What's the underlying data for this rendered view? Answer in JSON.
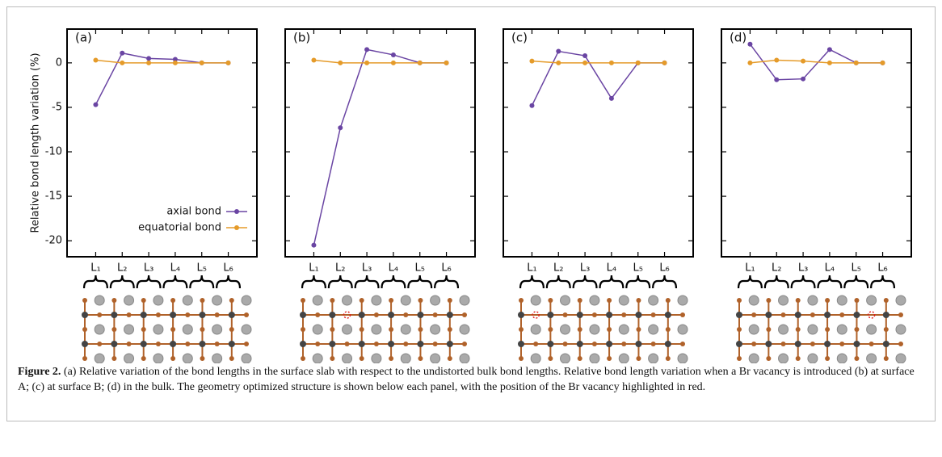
{
  "chart_data": [
    {
      "type": "line",
      "title": "(a)",
      "ylabel": "Relative bond length variation (%)",
      "categories": [
        "L₁",
        "L₂",
        "L₃",
        "L₄",
        "L₅",
        "L₆"
      ],
      "ylim": [
        -21.8,
        3.8
      ],
      "yticks": [
        0,
        -5,
        -10,
        -15,
        -20
      ],
      "legend": "lower right",
      "series": [
        {
          "name": "axial bond",
          "color": "#6a45a3",
          "values": [
            -4.7,
            1.1,
            0.5,
            0.4,
            0,
            0
          ]
        },
        {
          "name": "equatorial bond",
          "color": "#e59b2a",
          "values": [
            0.3,
            0,
            0,
            0,
            0,
            0
          ]
        }
      ]
    },
    {
      "type": "line",
      "title": "(b)",
      "categories": [
        "L₁",
        "L₂",
        "L₃",
        "L₄",
        "L₅",
        "L₆"
      ],
      "ylim": [
        -21.8,
        3.8
      ],
      "series": [
        {
          "color": "#6a45a3",
          "values": [
            -20.5,
            -7.3,
            1.5,
            0.9,
            0,
            0
          ]
        },
        {
          "color": "#e59b2a",
          "values": [
            0.3,
            0,
            0,
            0,
            0,
            0
          ]
        }
      ]
    },
    {
      "type": "line",
      "title": "(c)",
      "categories": [
        "L₁",
        "L₂",
        "L₃",
        "L₄",
        "L₅",
        "L₆"
      ],
      "ylim": [
        -21.8,
        3.8
      ],
      "series": [
        {
          "color": "#6a45a3",
          "values": [
            -4.8,
            1.3,
            0.8,
            -4.0,
            0,
            0
          ]
        },
        {
          "color": "#e59b2a",
          "values": [
            0.2,
            0,
            0,
            0,
            0,
            0
          ]
        }
      ]
    },
    {
      "type": "line",
      "title": "(d)",
      "categories": [
        "L₁",
        "L₂",
        "L₃",
        "L₄",
        "L₅",
        "L₆"
      ],
      "ylim": [
        -21.8,
        3.8
      ],
      "series": [
        {
          "color": "#6a45a3",
          "values": [
            2.1,
            -1.9,
            -1.8,
            1.5,
            0,
            0
          ]
        },
        {
          "color": "#e59b2a",
          "values": [
            0,
            0.3,
            0.2,
            0,
            0,
            0
          ]
        }
      ]
    }
  ],
  "caption": {
    "label": "Figure 2.",
    "text": " (a) Relative variation of the bond lengths in the surface slab with respect to the undistorted bulk bond lengths. Relative bond length variation when a Br vacancy is introduced (b) at surface A; (c) at surface B; (d) in the bulk. The geometry optimized structure is shown below each panel, with the position of the Br vacancy highlighted in red."
  }
}
